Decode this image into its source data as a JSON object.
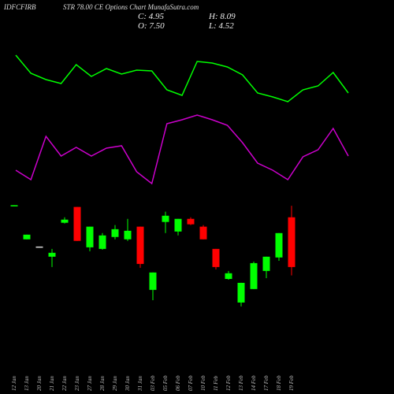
{
  "chart_data": {
    "type": "candlestick",
    "symbol": "IDFCFIRB",
    "title": "STR 78.00  CE Options  Chart MunafaSutra.com",
    "stats": [
      "C: 4.95",
      "H: 8.09",
      "O: 7.50",
      "L: 4.52"
    ],
    "categories": [
      "12 Jan",
      "13 Jan",
      "20 Jan",
      "21 Jan",
      "22 Jan",
      "23 Jan",
      "27 Jan",
      "28 Jan",
      "29 Jan",
      "30 Jan",
      "31 Jan",
      "03 Feb",
      "05 Feb",
      "06 Feb",
      "07 Feb",
      "10 Feb",
      "11 Feb",
      "12 Feb",
      "13 Feb",
      "14 Feb",
      "17 Feb",
      "18 Feb",
      "19 Feb"
    ],
    "open": [
      8.1,
      6.37,
      6.0,
      5.48,
      7.22,
      8.03,
      5.96,
      5.88,
      6.49,
      6.37,
      7.02,
      3.78,
      7.26,
      6.77,
      7.42,
      7.02,
      5.88,
      4.34,
      3.13,
      3.82,
      4.75,
      5.44,
      7.5
    ],
    "close": [
      8.12,
      6.61,
      6.0,
      5.68,
      7.38,
      6.29,
      7.02,
      6.57,
      6.89,
      6.81,
      5.11,
      4.67,
      7.58,
      7.42,
      7.14,
      6.37,
      4.95,
      4.63,
      4.14,
      5.15,
      5.48,
      6.69,
      4.95
    ],
    "high": [
      8.12,
      6.61,
      6.0,
      5.88,
      7.5,
      8.03,
      7.02,
      6.69,
      7.1,
      7.42,
      7.02,
      4.67,
      7.79,
      7.42,
      7.5,
      7.1,
      5.88,
      4.75,
      4.14,
      5.23,
      5.48,
      6.69,
      8.09
    ],
    "low": [
      8.1,
      6.37,
      6.0,
      4.95,
      7.18,
      6.29,
      5.76,
      5.84,
      6.37,
      6.29,
      4.91,
      3.25,
      6.69,
      6.57,
      7.1,
      6.37,
      4.83,
      4.3,
      2.93,
      3.82,
      4.38,
      5.27,
      4.52
    ],
    "up_color": "#00ff00",
    "down_color": "#ff0000",
    "flat_color": "#dddddd",
    "ylim": [
      2.4,
      8.5
    ],
    "lines": [
      {
        "color": "#00ff00",
        "values": [
          170,
          147,
          139,
          134,
          158,
          143,
          153,
          146,
          151,
          150,
          126,
          119,
          162,
          160,
          155,
          145,
          122,
          117,
          111,
          126,
          131,
          148,
          122
        ]
      },
      {
        "color": "#cc00cc",
        "values": [
          24,
          12,
          67,
          42,
          53,
          42,
          52,
          55,
          22,
          7,
          83,
          88,
          94,
          88,
          81,
          59,
          33,
          24,
          12,
          41,
          50,
          77,
          42
        ]
      }
    ],
    "lines_ylim": [
      0,
      180
    ]
  }
}
